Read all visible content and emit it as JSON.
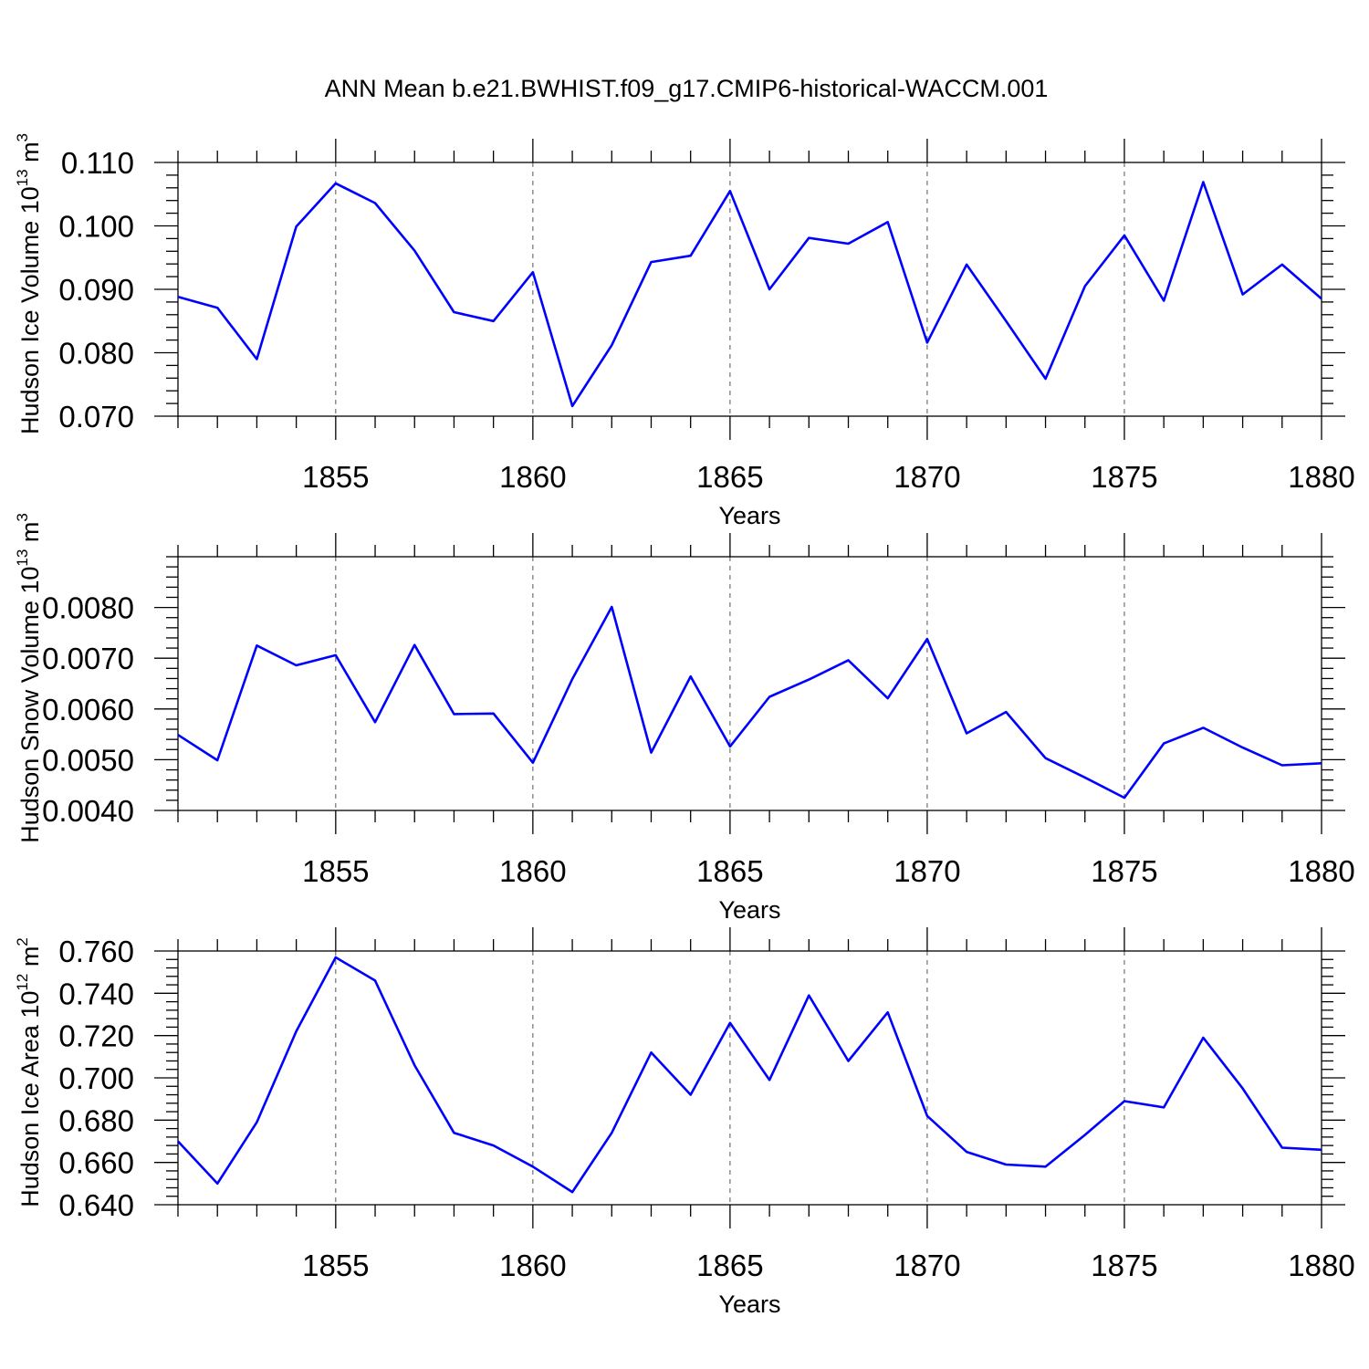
{
  "chart_data": {
    "title": "ANN Mean b.e21.BWHIST.f09_g17.CMIP6-historical-WACCM.001",
    "panels": [
      {
        "type": "line",
        "id": "ice-volume",
        "ylabel": "Hudson Ice Volume 10",
        "ylabel_exp": "13",
        "ylabel_unit": " m",
        "ylabel_unit_exp": "3",
        "xlabel": "Years",
        "xlim": [
          1851,
          1880
        ],
        "ylim": [
          0.07,
          0.11
        ],
        "yticks": [
          0.07,
          0.08,
          0.09,
          0.1,
          0.11
        ],
        "yticklabels": [
          "0.070",
          "0.080",
          "0.090",
          "0.100",
          "0.110"
        ],
        "yminor": 0.002,
        "xticks": [
          1855,
          1860,
          1865,
          1870,
          1875,
          1880
        ],
        "xticklabels": [
          "1855",
          "1860",
          "1865",
          "1870",
          "1875",
          "1880"
        ],
        "x": [
          1851,
          1852,
          1853,
          1854,
          1855,
          1856,
          1857,
          1858,
          1859,
          1860,
          1861,
          1862,
          1863,
          1864,
          1865,
          1866,
          1867,
          1868,
          1869,
          1870,
          1871,
          1872,
          1873,
          1874,
          1875,
          1876,
          1877,
          1878,
          1879,
          1880
        ],
        "values": [
          0.0888,
          0.0871,
          0.079,
          0.0999,
          0.1067,
          0.1036,
          0.0961,
          0.0864,
          0.085,
          0.0927,
          0.0716,
          0.0812,
          0.0943,
          0.0953,
          0.1055,
          0.09,
          0.0981,
          0.0972,
          0.1006,
          0.0816,
          0.0939,
          0.085,
          0.0759,
          0.0905,
          0.0985,
          0.0882,
          0.1069,
          0.0892,
          0.0939,
          0.0885
        ],
        "series_name": "Hudson Ice Volume",
        "color": "#0000ff"
      },
      {
        "type": "line",
        "id": "snow-volume",
        "ylabel": "Hudson Snow Volume 10",
        "ylabel_exp": "13",
        "ylabel_unit": " m",
        "ylabel_unit_exp": "3",
        "xlabel": "Years",
        "xlim": [
          1851,
          1880
        ],
        "ylim": [
          0.004,
          0.009
        ],
        "yticks": [
          0.004,
          0.005,
          0.006,
          0.007,
          0.008
        ],
        "yticklabels": [
          "0.0040",
          "0.0050",
          "0.0060",
          "0.0070",
          "0.0080"
        ],
        "yminor": 0.0002,
        "xticks": [
          1855,
          1860,
          1865,
          1870,
          1875,
          1880
        ],
        "xticklabels": [
          "1855",
          "1860",
          "1865",
          "1870",
          "1875",
          "1880"
        ],
        "x": [
          1851,
          1852,
          1853,
          1854,
          1855,
          1856,
          1857,
          1858,
          1859,
          1860,
          1861,
          1862,
          1863,
          1864,
          1865,
          1866,
          1867,
          1868,
          1869,
          1870,
          1871,
          1872,
          1873,
          1874,
          1875,
          1876,
          1877,
          1878,
          1879,
          1880
        ],
        "values": [
          0.00549,
          0.00499,
          0.00725,
          0.00686,
          0.00706,
          0.00574,
          0.00726,
          0.0059,
          0.00591,
          0.00494,
          0.00659,
          0.00801,
          0.00514,
          0.00664,
          0.00526,
          0.00624,
          0.00658,
          0.00696,
          0.00621,
          0.00738,
          0.00552,
          0.00594,
          0.00503,
          0.00465,
          0.00425,
          0.00532,
          0.00563,
          0.00524,
          0.00489,
          0.00493
        ],
        "series_name": "Hudson Snow Volume",
        "color": "#0000ff"
      },
      {
        "type": "line",
        "id": "ice-area",
        "ylabel": "Hudson Ice Area 10",
        "ylabel_exp": "12",
        "ylabel_unit": " m",
        "ylabel_unit_exp": "2",
        "xlabel": "Years",
        "xlim": [
          1851,
          1880
        ],
        "ylim": [
          0.64,
          0.76
        ],
        "yticks": [
          0.64,
          0.66,
          0.68,
          0.7,
          0.72,
          0.74,
          0.76
        ],
        "yticklabels": [
          "0.640",
          "0.660",
          "0.680",
          "0.700",
          "0.720",
          "0.740",
          "0.760"
        ],
        "yminor": 0.004,
        "xticks": [
          1855,
          1860,
          1865,
          1870,
          1875,
          1880
        ],
        "xticklabels": [
          "1855",
          "1860",
          "1865",
          "1870",
          "1875",
          "1880"
        ],
        "x": [
          1851,
          1852,
          1853,
          1854,
          1855,
          1856,
          1857,
          1858,
          1859,
          1860,
          1861,
          1862,
          1863,
          1864,
          1865,
          1866,
          1867,
          1868,
          1869,
          1870,
          1871,
          1872,
          1873,
          1874,
          1875,
          1876,
          1877,
          1878,
          1879,
          1880
        ],
        "values": [
          0.67,
          0.65,
          0.679,
          0.722,
          0.757,
          0.746,
          0.706,
          0.674,
          0.668,
          0.658,
          0.646,
          0.674,
          0.712,
          0.692,
          0.726,
          0.699,
          0.739,
          0.708,
          0.731,
          0.682,
          0.665,
          0.659,
          0.658,
          0.673,
          0.689,
          0.686,
          0.719,
          0.695,
          0.667,
          0.666
        ],
        "series_name": "Hudson Ice Area",
        "color": "#0000ff"
      }
    ]
  }
}
